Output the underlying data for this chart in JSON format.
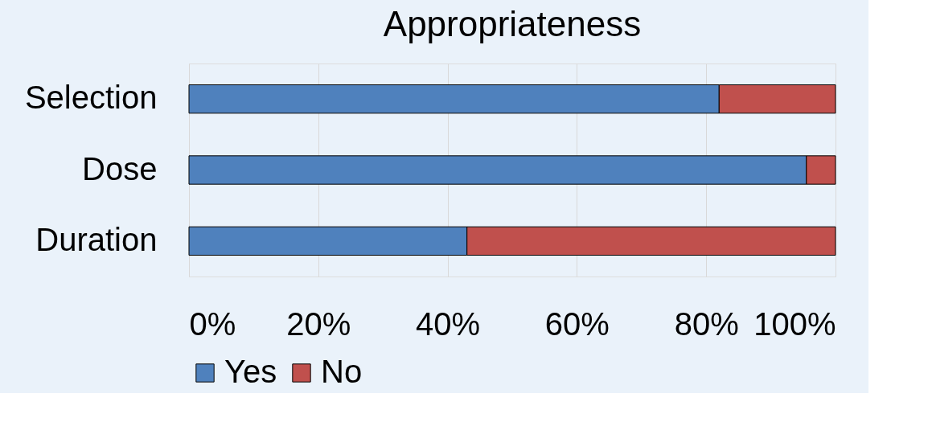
{
  "chart_data": {
    "type": "bar",
    "title": "Appropriateness",
    "orientation": "horizontal",
    "stacked": true,
    "categories": [
      "Selection",
      "Dose",
      "Duration"
    ],
    "series": [
      {
        "name": "Yes",
        "color": "#4f81bd",
        "values": [
          82,
          95.5,
          43
        ]
      },
      {
        "name": "No",
        "color": "#c0504d",
        "values": [
          18,
          4.5,
          57
        ]
      }
    ],
    "xlim": [
      0,
      100
    ],
    "xticks": [
      {
        "value": 0,
        "label": "0%"
      },
      {
        "value": 20,
        "label": "20%"
      },
      {
        "value": 40,
        "label": "40%"
      },
      {
        "value": 60,
        "label": "60%"
      },
      {
        "value": 80,
        "label": "80%"
      },
      {
        "value": 100,
        "label": "100%"
      }
    ],
    "grid": "x",
    "legend": "bottom"
  }
}
